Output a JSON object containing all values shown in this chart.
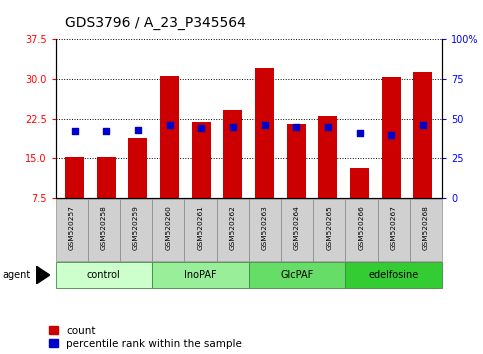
{
  "title": "GDS3796 / A_23_P345564",
  "samples": [
    "GSM520257",
    "GSM520258",
    "GSM520259",
    "GSM520260",
    "GSM520261",
    "GSM520262",
    "GSM520263",
    "GSM520264",
    "GSM520265",
    "GSM520266",
    "GSM520267",
    "GSM520268"
  ],
  "counts": [
    15.3,
    15.2,
    18.8,
    30.5,
    21.8,
    24.2,
    32.0,
    21.5,
    23.0,
    13.2,
    30.3,
    31.2
  ],
  "percentiles": [
    42,
    42,
    43,
    46,
    44,
    45,
    46,
    45,
    45,
    41,
    40,
    46
  ],
  "groups": [
    {
      "label": "control",
      "color": "#ccffcc",
      "start": 0,
      "end": 3
    },
    {
      "label": "InoPAF",
      "color": "#99ee99",
      "start": 3,
      "end": 6
    },
    {
      "label": "GlcPAF",
      "color": "#66dd66",
      "start": 6,
      "end": 9
    },
    {
      "label": "edelfosine",
      "color": "#33cc33",
      "start": 9,
      "end": 12
    }
  ],
  "ylim_left": [
    7.5,
    37.5
  ],
  "ylim_right": [
    0,
    100
  ],
  "yticks_left": [
    7.5,
    15.0,
    22.5,
    30.0,
    37.5
  ],
  "yticks_right": [
    0,
    25,
    50,
    75,
    100
  ],
  "bar_color": "#cc0000",
  "dot_color": "#0000cc",
  "grid_color": "#000000",
  "bar_width": 0.6,
  "title_fontsize": 10,
  "tick_fontsize": 7,
  "legend_fontsize": 7.5,
  "agent_label": "agent"
}
